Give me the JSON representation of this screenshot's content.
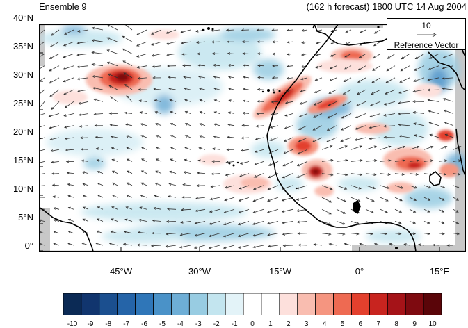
{
  "title_left": "Ensemble 9",
  "title_right": "(162 h forecast) 1800 UTC 14 Aug 2004",
  "y_axis_labels": [
    "40°N",
    "35°N",
    "30°N",
    "25°N",
    "20°N",
    "15°N",
    "10°N",
    "5°N",
    "0°"
  ],
  "x_axis_labels": [
    "45°W",
    "30°W",
    "15°W",
    "0°",
    "15°E"
  ],
  "reference_vector": {
    "value": "10",
    "label": "Reference Vector"
  },
  "colorbar": {
    "tick_labels": [
      "-10",
      "-9",
      "-8",
      "-7",
      "-6",
      "-5",
      "-4",
      "-3",
      "-2",
      "-1",
      "0",
      "1",
      "2",
      "3",
      "4",
      "5",
      "6",
      "7",
      "8",
      "9",
      "10"
    ],
    "colors": [
      "#0b2a55",
      "#11356e",
      "#1b4f8f",
      "#2564a8",
      "#2f76b8",
      "#4a92c8",
      "#6eaed6",
      "#98cce2",
      "#c3e5ef",
      "#e3f3f8",
      "#ffffff",
      "#ffffff",
      "#fde0dc",
      "#f9bdb0",
      "#f59580",
      "#ee6a52",
      "#e3402d",
      "#c8241f",
      "#a51318",
      "#7e0a10",
      "#5a0509"
    ]
  },
  "colors": {
    "land": "#ffffff",
    "missing": "#c8c8c8",
    "coast": "#000000",
    "vectors": "#303030"
  }
}
